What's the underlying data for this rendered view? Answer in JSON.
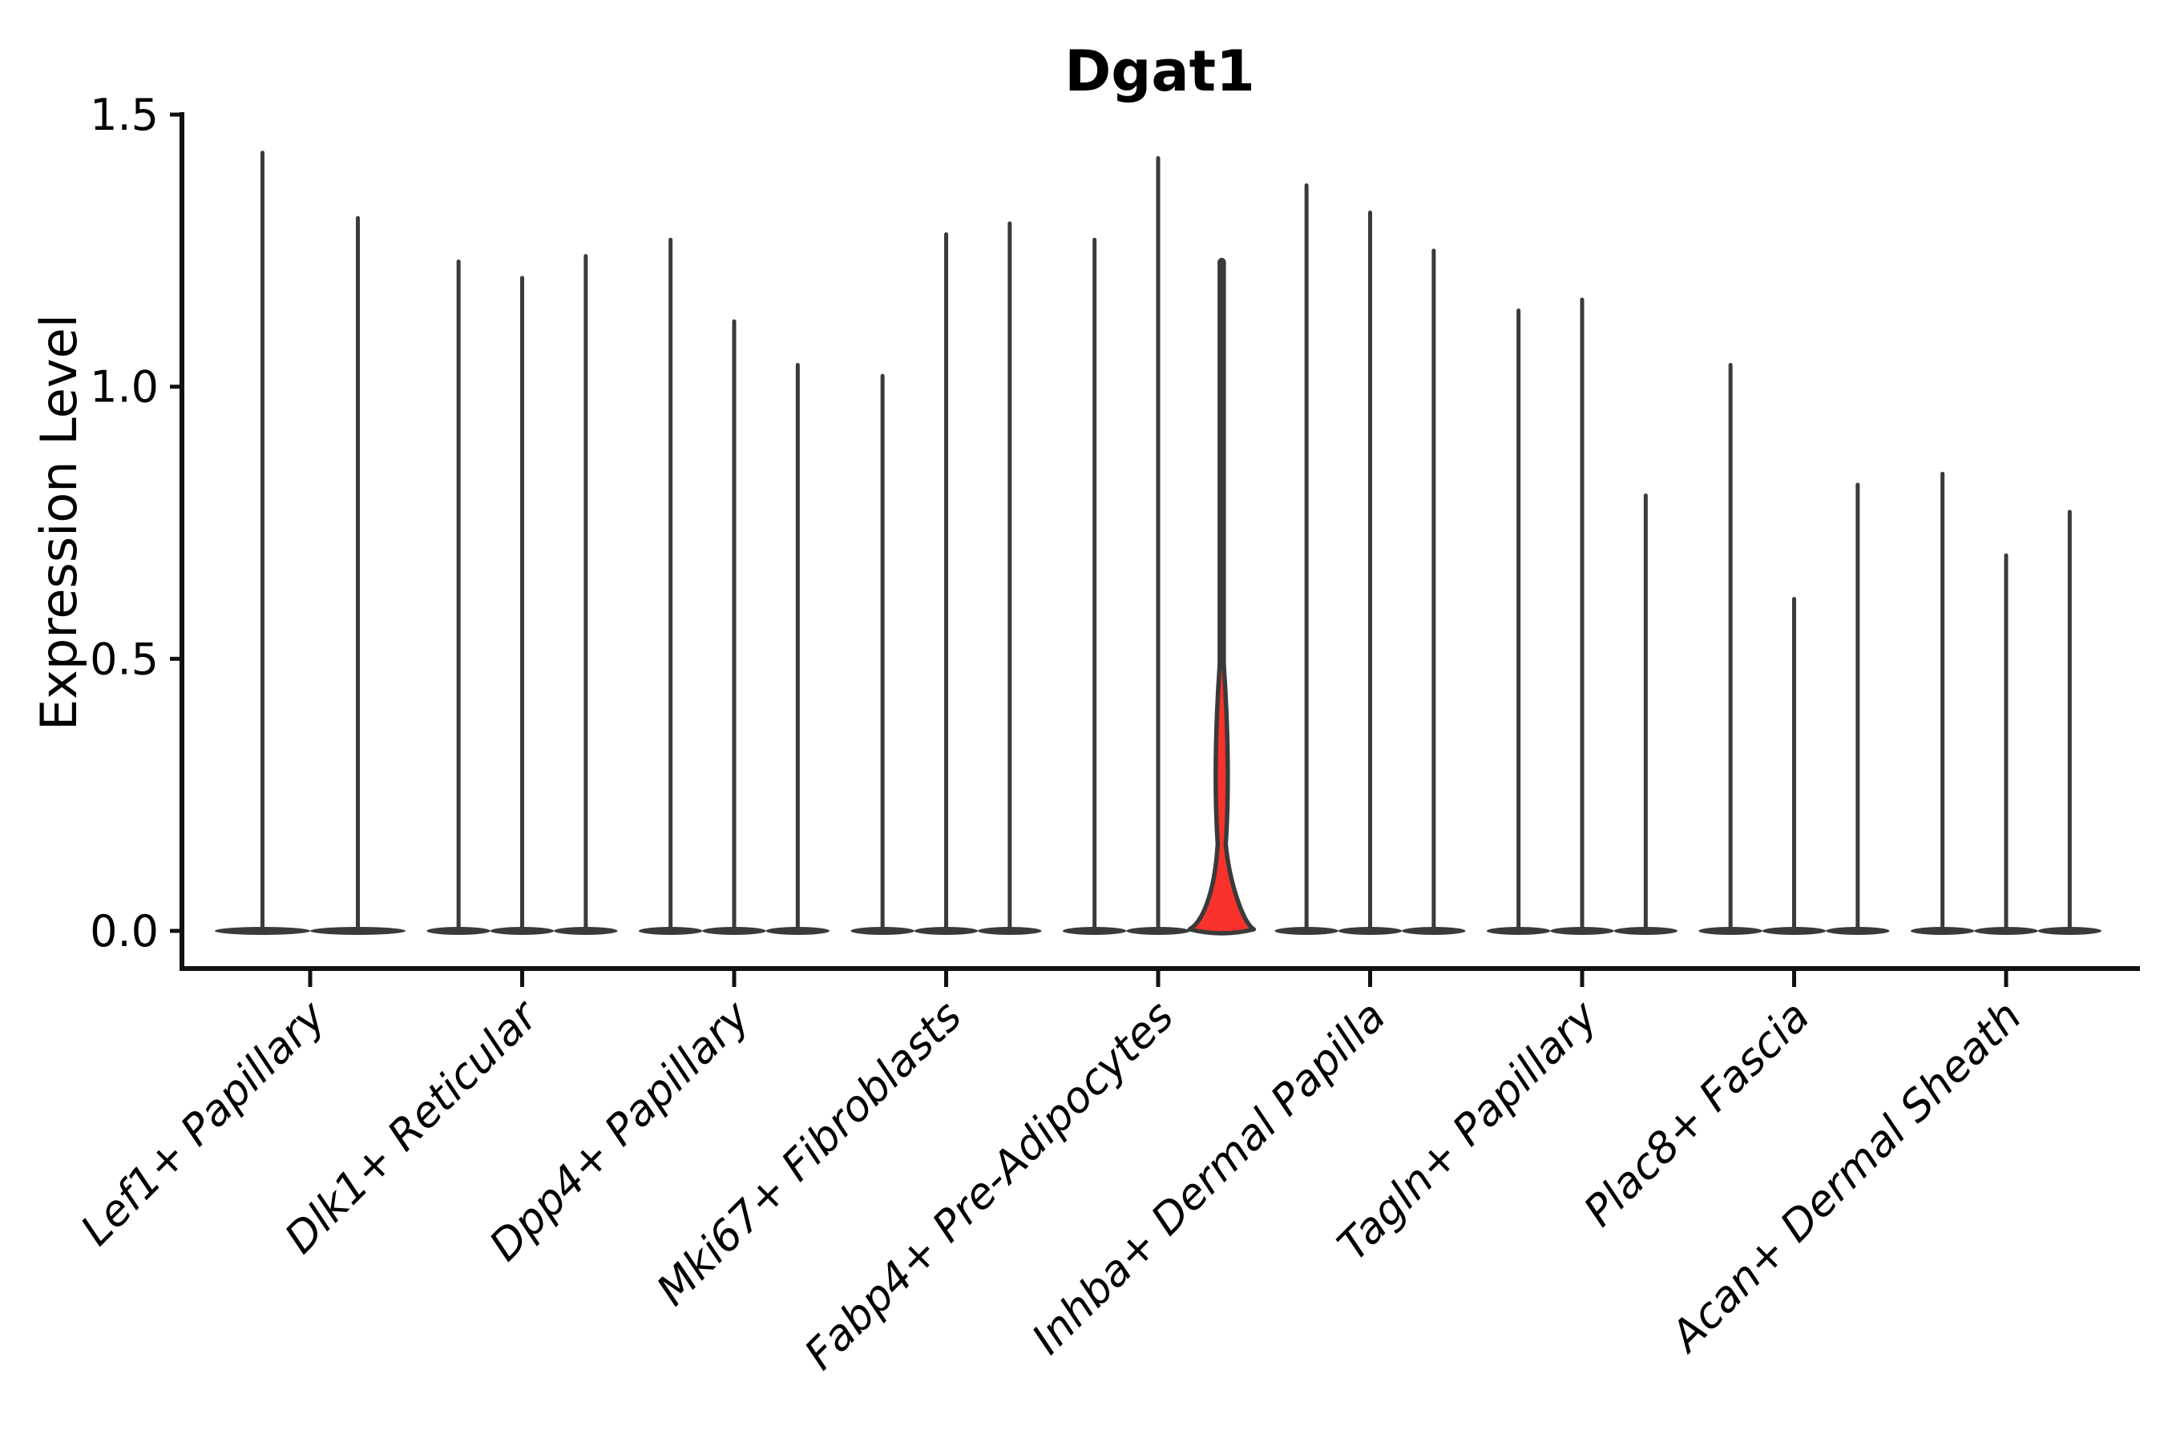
{
  "chart_data": {
    "type": "violin",
    "title": "Dgat1",
    "ylabel": "Expression Level",
    "xlabel": "",
    "grid": false,
    "legend": "none",
    "ylim": [
      -0.07,
      1.5
    ],
    "yticks": [
      0.0,
      0.5,
      1.0,
      1.5
    ],
    "ytick_labels": [
      "0.0",
      "0.5",
      "1.0",
      "1.5"
    ],
    "categories": [
      "Lef1+ Papillary",
      "Dlk1+ Reticular",
      "Dpp4+ Papillary",
      "Mki67+ Fibroblasts",
      "Fabp4+ Pre-Adipocytes",
      "Inhba+ Dermal Papilla",
      "Tagln+ Papillary",
      "Plac8+ Fascia",
      "Acan+ Dermal Sheath"
    ],
    "groups": [
      {
        "category": "Lef1+ Papillary",
        "violins": [
          {
            "max": 1.43
          },
          {
            "max": 1.31
          }
        ]
      },
      {
        "category": "Dlk1+ Reticular",
        "violins": [
          {
            "max": 1.23
          },
          {
            "max": 1.2
          },
          {
            "max": 1.24
          }
        ]
      },
      {
        "category": "Dpp4+ Papillary",
        "violins": [
          {
            "max": 1.27
          },
          {
            "max": 1.12
          },
          {
            "max": 1.04
          }
        ]
      },
      {
        "category": "Mki67+ Fibroblasts",
        "violins": [
          {
            "max": 1.02
          },
          {
            "max": 1.28
          },
          {
            "max": 1.3
          }
        ]
      },
      {
        "category": "Fabp4+ Pre-Adipocytes",
        "violins": [
          {
            "max": 1.27
          },
          {
            "max": 1.42
          },
          {
            "max": 1.23,
            "highlighted": true,
            "lens_top": 0.49,
            "lens_bottom": 0.19,
            "bulge_top": 0.16
          }
        ]
      },
      {
        "category": "Inhba+ Dermal Papilla",
        "violins": [
          {
            "max": 1.37
          },
          {
            "max": 1.32
          },
          {
            "max": 1.25
          }
        ]
      },
      {
        "category": "Tagln+ Papillary",
        "violins": [
          {
            "max": 1.14
          },
          {
            "max": 1.16
          },
          {
            "max": 0.8
          }
        ]
      },
      {
        "category": "Plac8+ Fascia",
        "violins": [
          {
            "max": 1.04
          },
          {
            "max": 0.61
          },
          {
            "max": 0.82
          }
        ]
      },
      {
        "category": "Acan+ Dermal Sheath",
        "violins": [
          {
            "max": 0.84
          },
          {
            "max": 0.69
          },
          {
            "max": 0.77
          }
        ]
      }
    ],
    "colors": {
      "violin_line": "#3a3a3a",
      "axis": "#111111",
      "highlight_fill": "#f9322b",
      "background": "#ffffff"
    }
  }
}
